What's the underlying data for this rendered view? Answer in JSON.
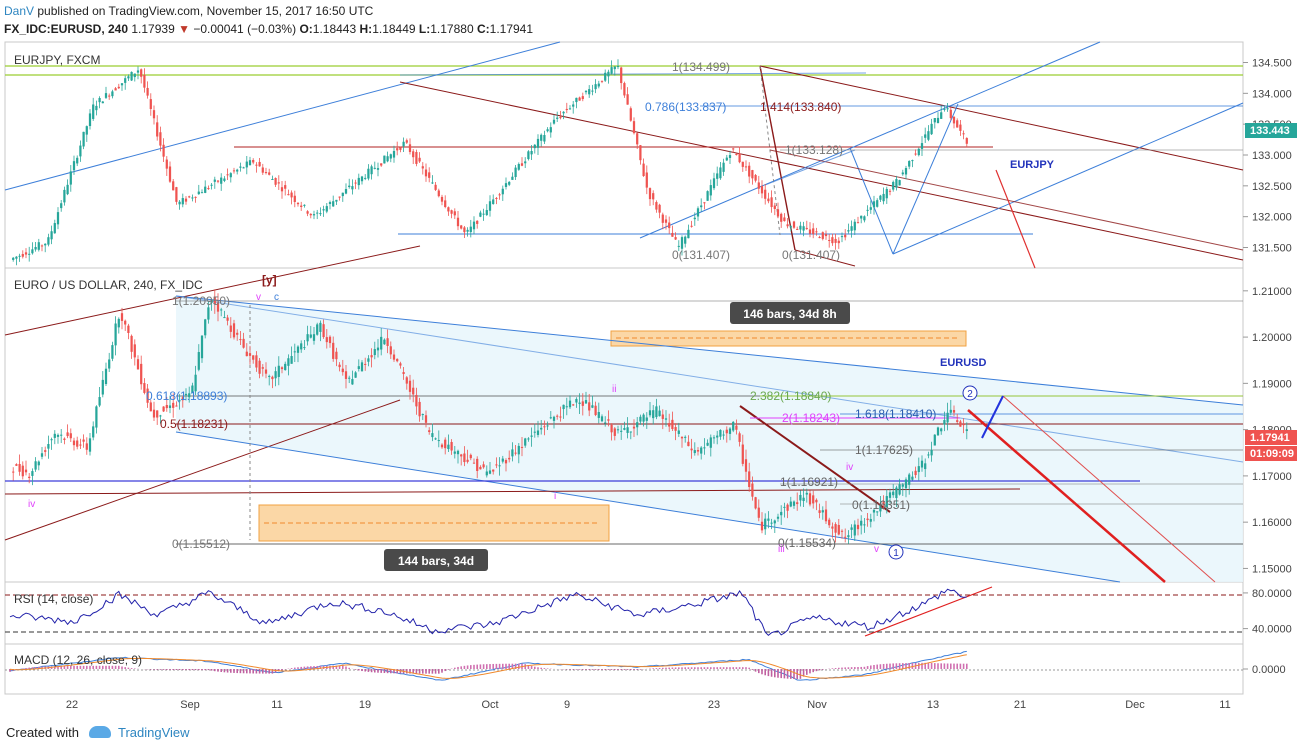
{
  "header": {
    "author": "DanV",
    "published": "published on TradingView.com, November 15, 2017 16:50 UTC",
    "symbol": "FX_IDC:EURUSD, 240",
    "last": "1.17939",
    "change": "−0.00041 (−0.03%)",
    "o_label": "O:",
    "o": "1.18443",
    "h_label": "H:",
    "h": "1.18449",
    "l_label": "L:",
    "l": "1.17880",
    "c_label": "C:",
    "c": "1.17941"
  },
  "footer": {
    "created_with": "Created with",
    "brand": "TradingView"
  },
  "colors": {
    "up": "#26a69a",
    "down": "#ef5350",
    "blue": "#3d7fd9",
    "darkred": "#8b1a1a",
    "orange": "#fbc97f",
    "pink": "#e040fb"
  },
  "chart_data": [
    {
      "type": "candlestick",
      "pane": "EURJPY",
      "title": "EURJPY, FXCM",
      "ylim": [
        131.2,
        134.8
      ],
      "y_ticks": [
        "134.500",
        "134.000",
        "133.500",
        "133.000",
        "132.500",
        "132.000",
        "131.500"
      ],
      "last_price": "133.443",
      "label": "EURJPY",
      "fib_labels": [
        "1(134.499)",
        "0.786(133.837)",
        "1.414(133.840)",
        "1(133.128)",
        "0(131.407)",
        "0(131.407)"
      ],
      "path": [
        [
          0,
          131.3
        ],
        [
          10,
          131.6
        ],
        [
          22,
          133.8
        ],
        [
          34,
          134.4
        ],
        [
          44,
          132.2
        ],
        [
          64,
          132.9
        ],
        [
          80,
          132.0
        ],
        [
          104,
          133.2
        ],
        [
          120,
          131.7
        ],
        [
          144,
          133.6
        ],
        [
          160,
          134.45
        ],
        [
          168,
          132.4
        ],
        [
          176,
          131.5
        ],
        [
          190,
          133.1
        ],
        [
          204,
          131.9
        ],
        [
          218,
          131.6
        ],
        [
          234,
          132.6
        ],
        [
          246,
          133.8
        ],
        [
          252,
          133.2
        ]
      ]
    },
    {
      "type": "candlestick",
      "pane": "EURUSD",
      "title": "EURO / US DOLLAR, 240, FX_IDC",
      "ylim": [
        1.1475,
        1.2145
      ],
      "y_ticks": [
        "1.21000",
        "1.20000",
        "1.19000",
        "1.18000",
        "1.17000",
        "1.16000",
        "1.15000"
      ],
      "last_price": "1.17941",
      "countdown": "01:09:09",
      "label": "EURUSD",
      "fib_labels": [
        "1(1.20950)",
        "0.618(1.18893)",
        "0.5(1.18231)",
        "0(1.15512)",
        "2.382(1.18840)",
        "2(1.18243)",
        "1.618(1.18410)",
        "1(1.17625)",
        "1(1.16921)",
        "0(1.16351)",
        "0(1.15534)"
      ],
      "wave_labels": [
        "[y]",
        "v",
        "c",
        "iv",
        "i",
        "ii",
        "iii",
        "iv",
        "v",
        "1",
        "2"
      ],
      "range_labels": [
        "144 bars, 34d",
        "146 bars, 34d 8h"
      ],
      "path": [
        [
          0,
          1.172
        ],
        [
          6,
          1.1705
        ],
        [
          14,
          1.1795
        ],
        [
          24,
          1.176
        ],
        [
          34,
          1.206
        ],
        [
          44,
          1.183
        ],
        [
          56,
          1.1875
        ],
        [
          62,
          1.209
        ],
        [
          72,
          1.198
        ],
        [
          80,
          1.1905
        ],
        [
          96,
          1.2025
        ],
        [
          104,
          1.19
        ],
        [
          116,
          1.2
        ],
        [
          130,
          1.179
        ],
        [
          148,
          1.1705
        ],
        [
          162,
          1.179
        ],
        [
          176,
          1.187
        ],
        [
          188,
          1.179
        ],
        [
          200,
          1.184
        ],
        [
          212,
          1.175
        ],
        [
          224,
          1.181
        ],
        [
          232,
          1.159
        ],
        [
          246,
          1.166
        ],
        [
          258,
          1.1565
        ],
        [
          270,
          1.164
        ],
        [
          282,
          1.172
        ],
        [
          290,
          1.184
        ],
        [
          296,
          1.18
        ]
      ]
    },
    {
      "type": "line",
      "pane": "RSI",
      "title": "RSI (14, close)",
      "ylim": [
        25,
        90
      ],
      "y_ticks": [
        "80.0000",
        "40.0000"
      ],
      "path": [
        [
          0,
          55
        ],
        [
          20,
          48
        ],
        [
          34,
          78
        ],
        [
          46,
          55
        ],
        [
          62,
          80
        ],
        [
          80,
          45
        ],
        [
          100,
          70
        ],
        [
          116,
          60
        ],
        [
          132,
          38
        ],
        [
          150,
          45
        ],
        [
          176,
          78
        ],
        [
          196,
          55
        ],
        [
          214,
          68
        ],
        [
          228,
          80
        ],
        [
          236,
          30
        ],
        [
          250,
          52
        ],
        [
          268,
          42
        ],
        [
          286,
          70
        ],
        [
          292,
          84
        ],
        [
          298,
          75
        ]
      ]
    },
    {
      "type": "line",
      "pane": "MACD",
      "title": "MACD (12, 26, close, 9)",
      "ylim": [
        -0.012,
        0.012
      ],
      "y_ticks": [
        "0.0000"
      ],
      "path": [
        [
          0,
          -0.001
        ],
        [
          34,
          0.006
        ],
        [
          62,
          0.004
        ],
        [
          82,
          -0.002
        ],
        [
          104,
          0.003
        ],
        [
          134,
          -0.006
        ],
        [
          160,
          0.003
        ],
        [
          196,
          0.001
        ],
        [
          230,
          0.005
        ],
        [
          246,
          -0.006
        ],
        [
          266,
          -0.003
        ],
        [
          286,
          0.005
        ],
        [
          298,
          0.009
        ]
      ]
    }
  ],
  "x_axis": {
    "ticks": [
      "22",
      "Sep",
      "11",
      "19",
      "Oct",
      "9",
      "23",
      "Nov",
      "13",
      "21",
      "Dec",
      "11"
    ]
  }
}
